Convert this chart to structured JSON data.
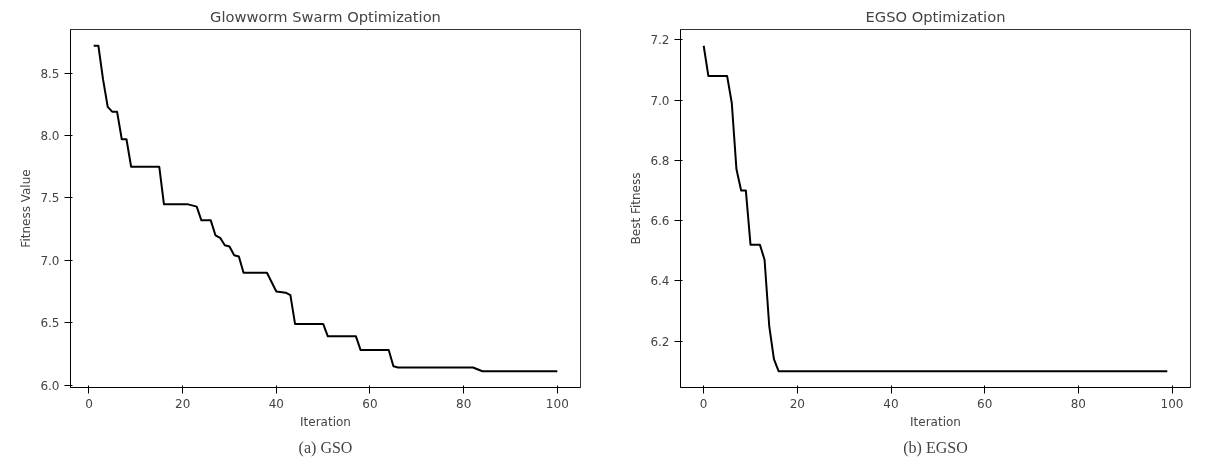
{
  "chart_data": [
    {
      "type": "line",
      "title": "Glowworm Swarm Optimization",
      "xlabel": "Iteration",
      "ylabel": "Fitness Value",
      "annotations": [
        "(a) GSO"
      ],
      "x": [
        1,
        2,
        3,
        4,
        5,
        6,
        7,
        8,
        9,
        15,
        16,
        21,
        23,
        24,
        26,
        27,
        28,
        29,
        30,
        31,
        32,
        33,
        38,
        40,
        42,
        43,
        44,
        50,
        51,
        57,
        58,
        64,
        65,
        66,
        82,
        84,
        100
      ],
      "series": [
        {
          "color": "#000000",
          "values": [
            8.72,
            8.72,
            8.45,
            8.23,
            8.19,
            8.19,
            7.97,
            7.97,
            7.75,
            7.75,
            7.45,
            7.45,
            7.43,
            7.32,
            7.32,
            7.2,
            7.18,
            7.12,
            7.11,
            7.04,
            7.03,
            6.9,
            6.9,
            6.75,
            6.74,
            6.72,
            6.49,
            6.49,
            6.39,
            6.39,
            6.28,
            6.28,
            6.15,
            6.14,
            6.14,
            6.11,
            6.11
          ]
        }
      ],
      "xlim": [
        -3.95,
        104.95
      ],
      "ylim": [
        5.98,
        8.85
      ],
      "xticks": [
        0,
        20,
        40,
        60,
        80,
        100
      ],
      "yticks": [
        {
          "value": 6.0,
          "label": "6.0"
        },
        {
          "value": 6.5,
          "label": "6.5"
        },
        {
          "value": 7.0,
          "label": "7.0"
        },
        {
          "value": 7.5,
          "label": "7.5"
        },
        {
          "value": 8.0,
          "label": "8.0"
        },
        {
          "value": 8.5,
          "label": "8.5"
        }
      ],
      "grid": false
    },
    {
      "type": "line",
      "title": "EGSO Optimization",
      "xlabel": "Iteration",
      "ylabel": "Best Fitness",
      "annotations": [
        "(b) EGSO"
      ],
      "x": [
        0,
        1,
        5,
        6,
        7,
        8,
        9,
        10,
        12,
        13,
        14,
        15,
        16,
        99
      ],
      "series": [
        {
          "color": "#000000",
          "values": [
            7.18,
            7.08,
            7.08,
            6.99,
            6.77,
            6.7,
            6.7,
            6.52,
            6.52,
            6.47,
            6.25,
            6.14,
            6.1,
            6.1
          ]
        }
      ],
      "xlim": [
        -4.95,
        103.95
      ],
      "ylim": [
        6.046,
        7.234
      ],
      "xticks": [
        0,
        20,
        40,
        60,
        80,
        100
      ],
      "yticks": [
        6.2,
        6.4,
        6.6,
        6.8,
        {
          "value": 7.0,
          "label": "7.0"
        },
        7.2
      ],
      "grid": false
    }
  ]
}
